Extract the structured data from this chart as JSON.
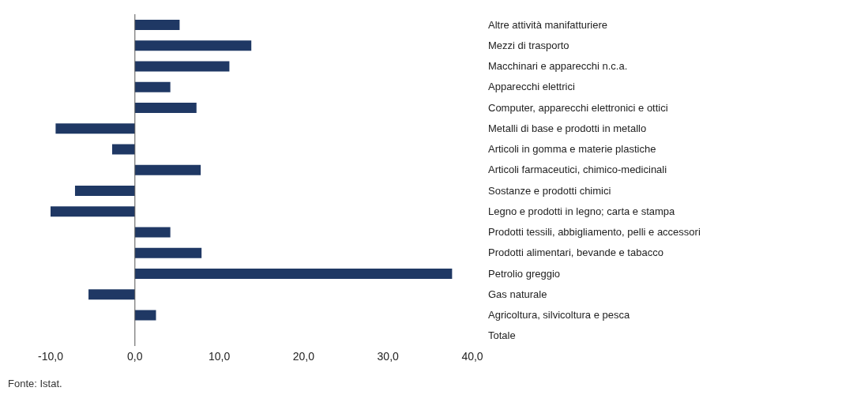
{
  "chart_data": {
    "type": "bar",
    "orientation": "horizontal",
    "categories": [
      "Altre attività manifatturiere",
      "Mezzi di trasporto",
      "Macchinari e apparecchi n.c.a.",
      "Apparecchi elettrici",
      "Computer, apparecchi elettronici e ottici",
      "Metalli di base e prodotti in metallo",
      "Articoli in gomma e materie plastiche",
      "Articoli farmaceutici, chimico-medicinali",
      "Sostanze e prodotti chimici",
      "Legno e prodotti in legno; carta e stampa",
      "Prodotti tessili, abbigliamento, pelli e accessori",
      "Prodotti alimentari, bevande e tabacco",
      "Petrolio greggio",
      "Gas naturale",
      "Agricoltura, silvicoltura e pesca",
      "Totale"
    ],
    "values": [
      5.3,
      13.8,
      11.2,
      4.2,
      7.3,
      -9.4,
      -2.7,
      7.8,
      -7.1,
      -10.0,
      4.2,
      7.9,
      37.6,
      -5.5,
      2.5,
      null
    ],
    "color": "#1f3864",
    "xlim": [
      -10,
      40
    ],
    "xticks": [
      {
        "value": -10,
        "label": "-10,0"
      },
      {
        "value": 0,
        "label": "0,0"
      },
      {
        "value": 10,
        "label": "10,0"
      },
      {
        "value": 20,
        "label": "20,0"
      },
      {
        "value": 30,
        "label": "30,0"
      },
      {
        "value": 40,
        "label": "40,0"
      }
    ],
    "grid": false,
    "ref_lines": [
      {
        "axis": "x",
        "value": 0,
        "color": "#555555"
      }
    ],
    "annotations": [
      "Fonte: Istat."
    ]
  }
}
